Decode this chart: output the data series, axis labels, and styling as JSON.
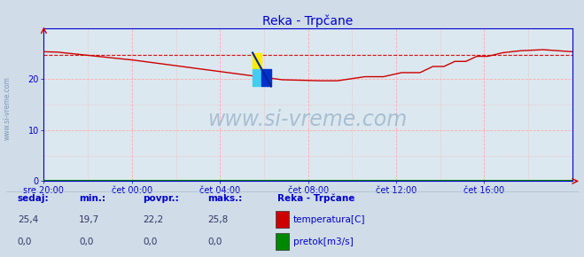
{
  "title": "Reka - Trpčane",
  "bg_color": "#d0dce8",
  "plot_bg_color": "#dce8f0",
  "grid_color_v": "#ffaaaa",
  "grid_color_h": "#ffaaaa",
  "line_color_temp": "#cc0000",
  "line_color_flow": "#008800",
  "dashed_line_color": "#cc0000",
  "axis_color": "#0000cc",
  "xlabel_color": "#0000cc",
  "ylabel_color": "#0000cc",
  "title_color": "#0000cc",
  "watermark_text": "www.si-vreme.com",
  "watermark_color": "#a0b8cc",
  "xlim": [
    0,
    288
  ],
  "ylim": [
    0,
    30
  ],
  "yticks": [
    0,
    10,
    20
  ],
  "xtick_labels": [
    "sre 20:00",
    "čet 00:00",
    "čet 04:00",
    "čet 08:00",
    "čet 12:00",
    "čet 16:00"
  ],
  "xtick_positions": [
    0,
    48,
    96,
    144,
    192,
    240
  ],
  "legend_title": "Reka - Trpčane",
  "legend_items": [
    {
      "label": "temperatura[C]",
      "color": "#cc0000"
    },
    {
      "label": "pretok[m3/s]",
      "color": "#008800"
    }
  ],
  "stats_headers": [
    "sedaj:",
    "min.:",
    "povpr.:",
    "maks.:"
  ],
  "stats_temp": [
    "25,4",
    "19,7",
    "22,2",
    "25,8"
  ],
  "stats_flow": [
    "0,0",
    "0,0",
    "0,0",
    "0,0"
  ],
  "dashed_y": 24.8,
  "sidebar_text": "www.si-vreme.com",
  "sidebar_color": "#7799bb"
}
